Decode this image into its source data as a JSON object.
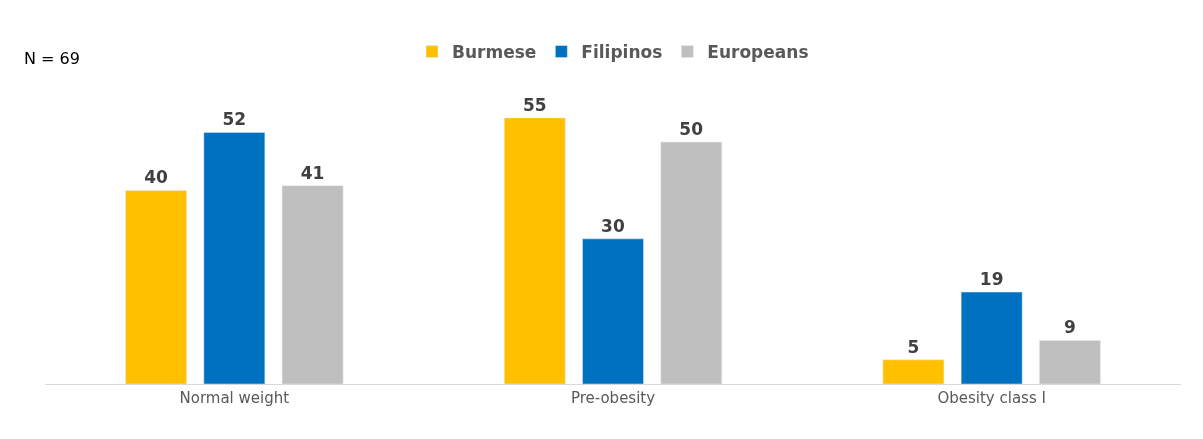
{
  "chart_data": {
    "type": "bar",
    "categories": [
      "Normal weight",
      "Pre-obesity",
      "Obesity class I"
    ],
    "series": [
      {
        "name": "Burmese",
        "color": "#ffc000",
        "values": [
          40,
          55,
          5
        ]
      },
      {
        "name": "Filipinos",
        "color": "#0070c0",
        "values": [
          52,
          30,
          19
        ]
      },
      {
        "name": "Europeans",
        "color": "#bfbfbf",
        "values": [
          41,
          50,
          9
        ]
      }
    ],
    "data_labels": true,
    "legend": "top",
    "annotations": [
      "N = 69"
    ]
  }
}
